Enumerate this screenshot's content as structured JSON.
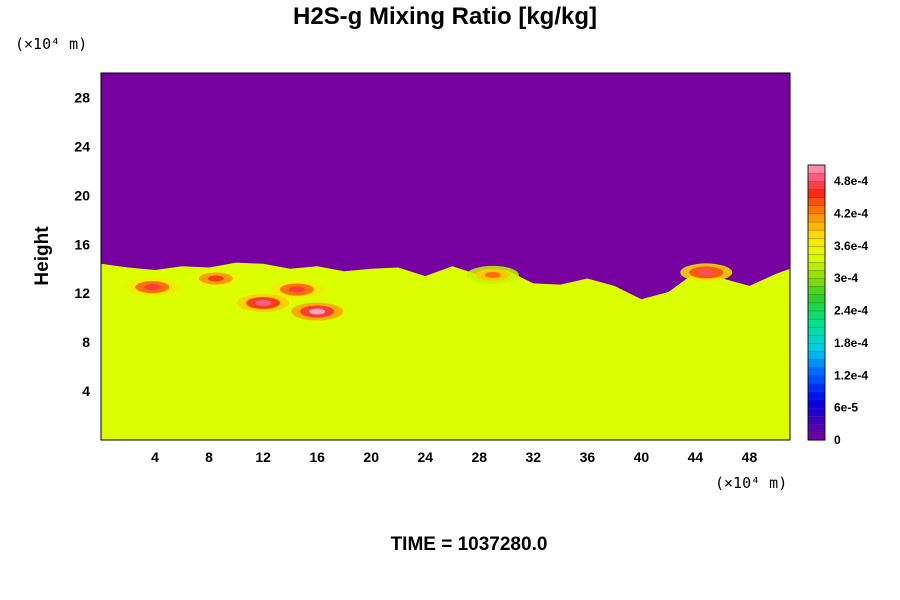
{
  "chart_data": {
    "type": "heatmap",
    "title": "H2S-g Mixing Ratio [kg/kg]",
    "ylabel": "Height",
    "xlabel": "",
    "x_unit": "(×10⁴ m)",
    "y_unit": "(×10⁴ m)",
    "xlim": [
      0,
      51
    ],
    "ylim": [
      0,
      30
    ],
    "x_ticks": [
      4,
      8,
      12,
      16,
      20,
      24,
      28,
      32,
      36,
      40,
      44,
      48
    ],
    "y_ticks": [
      4,
      8,
      12,
      16,
      20,
      24,
      28
    ],
    "colorbar": {
      "ticks": [
        "0",
        "6e-5",
        "1.2e-4",
        "1.8e-4",
        "2.4e-4",
        "3e-4",
        "3.6e-4",
        "4.2e-4",
        "4.8e-4"
      ],
      "tick_values": [
        0,
        6e-05,
        0.00012,
        0.00018,
        0.00024,
        0.0003,
        0.00036,
        0.00042,
        0.00048
      ],
      "range": [
        0,
        0.00051
      ],
      "levels": 34
    },
    "time_label": "TIME = 1037280.0",
    "background_value": 0,
    "bulk_value": 0.00034,
    "interface_height_profile": {
      "x": [
        0,
        2,
        4,
        6,
        8,
        10,
        12,
        14,
        16,
        18,
        20,
        22,
        24,
        26,
        28,
        30,
        32,
        34,
        36,
        38,
        40,
        42,
        44,
        46,
        48,
        50,
        51
      ],
      "height": [
        14.4,
        14.1,
        13.9,
        14.2,
        14.1,
        14.5,
        14.4,
        14.0,
        14.2,
        13.8,
        14.0,
        14.1,
        13.4,
        14.2,
        13.5,
        13.9,
        12.8,
        12.7,
        13.2,
        12.6,
        11.5,
        12.1,
        13.7,
        13.2,
        12.6,
        13.6,
        14.0
      ]
    },
    "high_concentration_patches": [
      {
        "x": 16,
        "y": 10.5,
        "value": 0.0005
      },
      {
        "x": 12,
        "y": 11.2,
        "value": 0.00048
      },
      {
        "x": 14.5,
        "y": 12.3,
        "value": 0.00046
      },
      {
        "x": 3.8,
        "y": 12.5,
        "value": 0.00046
      },
      {
        "x": 44.8,
        "y": 13.7,
        "value": 0.00047
      },
      {
        "x": 8.5,
        "y": 13.2,
        "value": 0.00044
      },
      {
        "x": 29,
        "y": 13.5,
        "value": 0.00042
      }
    ]
  }
}
